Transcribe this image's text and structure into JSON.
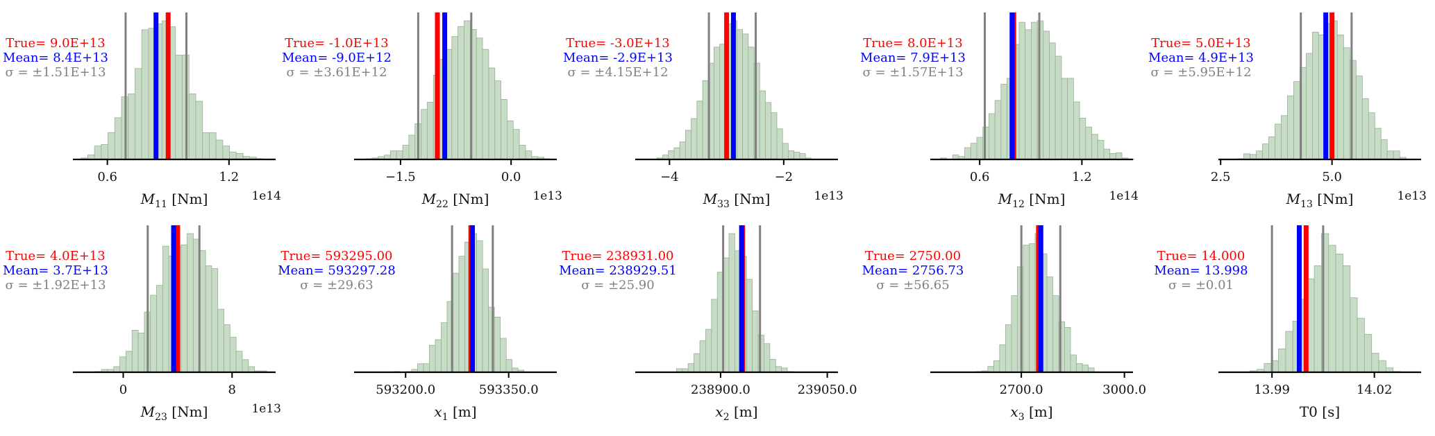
{
  "colors": {
    "true": "#ff0000",
    "mean": "#0000ff",
    "sigma": "#808080",
    "bar_fill": "#c6dcc4",
    "bar_edge": "#9aae98",
    "axis": "#000000"
  },
  "chart_data": [
    {
      "type": "bar",
      "subtype": "histogram",
      "xlabel_base": "M",
      "xlabel_sub": "11",
      "xlabel_unit": "[Nm]",
      "italic": true,
      "offset_text": "1e14",
      "xlim": [
        0.43,
        1.43
      ],
      "ticks": [
        0.6,
        1.2
      ],
      "tick_labels": [
        "0.6",
        "1.2"
      ],
      "true_value": 0.9,
      "mean_value": 0.84,
      "sigma_lines": [
        0.69,
        0.99
      ],
      "stat_text": {
        "true": "True= 9.0E+13",
        "mean": "Mean= 8.4E+13",
        "sigma": "σ = ±1.51E+13"
      },
      "bin_start": 0.47,
      "bin_width": 0.0333,
      "counts": [
        1,
        3,
        9,
        10,
        18,
        28,
        42,
        44,
        61,
        87,
        88,
        91,
        93,
        89,
        70,
        70,
        44,
        39,
        18,
        18,
        13,
        9,
        5,
        4,
        2,
        1.5,
        0.5,
        0.3
      ]
    },
    {
      "type": "bar",
      "subtype": "histogram",
      "xlabel_base": "M",
      "xlabel_sub": "22",
      "xlabel_unit": "[Nm]",
      "italic": true,
      "offset_text": "1e13",
      "xlim": [
        -2.13,
        0.62
      ],
      "ticks": [
        -1.5,
        0.0
      ],
      "tick_labels": [
        "−1.5",
        "0.0"
      ],
      "true_value": -1.0,
      "mean_value": -0.9,
      "sigma_lines": [
        -1.26,
        -0.54
      ],
      "stat_text": {
        "true": "True= -1.0E+13",
        "mean": "Mean= -9.0E+12",
        "sigma": "σ = ±3.61E+12"
      },
      "bin_start": -1.97,
      "bin_width": 0.0833,
      "counts": [
        0.5,
        1,
        2,
        3,
        6,
        6,
        10,
        17,
        25,
        35,
        40,
        59,
        70,
        77,
        86,
        93,
        97,
        91,
        85,
        77,
        64,
        55,
        42,
        27,
        21,
        10,
        6,
        2,
        1.5,
        0.5
      ]
    },
    {
      "type": "bar",
      "subtype": "histogram",
      "xlabel_base": "M",
      "xlabel_sub": "33",
      "xlabel_unit": "[Nm]",
      "italic": true,
      "offset_text": "1e13",
      "xlim": [
        -4.6,
        -1.05
      ],
      "ticks": [
        -4,
        -2
      ],
      "tick_labels": [
        "−4",
        "−2"
      ],
      "true_value": -3.0,
      "mean_value": -2.88,
      "sigma_lines": [
        -3.31,
        -2.49
      ],
      "stat_text": {
        "true": "True= -3.0E+13",
        "mean": "Mean= -2.9E+13",
        "sigma": "σ = ±4.15E+12"
      },
      "bin_start": -4.22,
      "bin_width": 0.1,
      "counts": [
        1,
        3,
        6,
        8,
        12,
        20,
        28,
        40,
        54,
        66,
        77,
        79,
        93,
        95,
        89,
        86,
        77,
        66,
        47,
        39,
        32,
        21,
        11,
        6,
        5,
        4,
        1,
        0.3
      ]
    },
    {
      "type": "bar",
      "subtype": "histogram",
      "xlabel_base": "M",
      "xlabel_sub": "12",
      "xlabel_unit": "[Nm]",
      "italic": true,
      "offset_text": "1e14",
      "xlim": [
        0.31,
        1.5
      ],
      "ticks": [
        0.6,
        1.2
      ],
      "tick_labels": [
        "0.6",
        "1.2"
      ],
      "true_value": 0.8,
      "mean_value": 0.79,
      "sigma_lines": [
        0.63,
        0.95
      ],
      "stat_text": {
        "true": "True= 8.0E+13",
        "mean": "Mean= 7.9E+13",
        "sigma": "σ = ±1.57E+13"
      },
      "bin_start": 0.37,
      "bin_width": 0.0355,
      "counts": [
        1,
        0.3,
        3,
        2,
        8,
        11,
        15,
        22,
        31,
        40,
        51,
        55,
        78,
        93,
        88,
        93,
        94,
        87,
        79,
        70,
        55,
        55,
        39,
        28,
        22,
        17,
        13,
        7,
        4,
        4.5,
        1,
        0.3
      ]
    },
    {
      "type": "bar",
      "subtype": "histogram",
      "xlabel_base": "M",
      "xlabel_sub": "13",
      "xlabel_unit": "[Nm]",
      "italic": true,
      "offset_text": "1e13",
      "xlim": [
        2.45,
        7.0
      ],
      "ticks": [
        2.5,
        5.0
      ],
      "tick_labels": [
        "2.5",
        "5.0"
      ],
      "true_value": 5.0,
      "mean_value": 4.86,
      "sigma_lines": [
        4.3,
        5.44
      ],
      "stat_text": {
        "true": "True= 5.0E+13",
        "mean": "Mean= 4.9E+13",
        "sigma": "σ = ±5.95E+12"
      },
      "bin_start": 2.6,
      "bin_width": 0.14,
      "counts": [
        0.3,
        0.3,
        0.5,
        4,
        3.5,
        6,
        11,
        16,
        25,
        31,
        45,
        55,
        65,
        75,
        90,
        88,
        96,
        98,
        88,
        79,
        70,
        59,
        43,
        33,
        22,
        14,
        6,
        6,
        1.5,
        0.3,
        0.2
      ]
    },
    {
      "type": "bar",
      "subtype": "histogram",
      "xlabel_base": "M",
      "xlabel_sub": "23",
      "xlabel_unit": "[Nm]",
      "italic": true,
      "offset_text": "1e13",
      "xlim": [
        -3.7,
        11.2
      ],
      "ticks": [
        0,
        8
      ],
      "tick_labels": [
        "0",
        "8"
      ],
      "true_value": 4.0,
      "mean_value": 3.7,
      "sigma_lines": [
        1.8,
        5.6
      ],
      "stat_text": {
        "true": "True= 4.0E+13",
        "mean": "Mean= 3.7E+13",
        "sigma": "σ = ±1.92E+13"
      },
      "bin_start": -2.05,
      "bin_width": 0.45,
      "counts": [
        0.5,
        2,
        2,
        4,
        11,
        15,
        30,
        28,
        43,
        55,
        62,
        90,
        83,
        90,
        91,
        99,
        95,
        87,
        76,
        74,
        45,
        34,
        25,
        15,
        9,
        4,
        1,
        1,
        0.3
      ]
    },
    {
      "type": "bar",
      "subtype": "histogram",
      "xlabel_base": "x",
      "xlabel_sub": "1",
      "xlabel_unit": "[m]",
      "italic": true,
      "offset_text": "",
      "xlim": [
        593125,
        593420
      ],
      "ticks": [
        593200,
        593350
      ],
      "tick_labels": [
        "593200.0",
        "593350.0"
      ],
      "true_value": 593295.0,
      "mean_value": 593297.28,
      "sigma_lines": [
        593267.6,
        593326.9
      ],
      "stat_text": {
        "true": "True= 593295.00",
        "mean": "Mean= 593297.28",
        "sigma": "σ = ±29.63"
      },
      "bin_start": 593183,
      "bin_width": 8.6,
      "counts": [
        0.5,
        0.2,
        0.5,
        2,
        6,
        6,
        19,
        23,
        35,
        50,
        70,
        82,
        92,
        98,
        93,
        73,
        46,
        39,
        24,
        9,
        3,
        1.5,
        0.3
      ]
    },
    {
      "type": "bar",
      "subtype": "histogram",
      "xlabel_base": "x",
      "xlabel_sub": "2",
      "xlabel_unit": "[m]",
      "italic": true,
      "offset_text": "",
      "xlim": [
        238780,
        239065
      ],
      "ticks": [
        238900,
        239050
      ],
      "tick_labels": [
        "238900.0",
        "239050.0"
      ],
      "true_value": 238931.0,
      "mean_value": 238929.51,
      "sigma_lines": [
        238903.6,
        238955.4
      ],
      "stat_text": {
        "true": "True= 238931.00",
        "mean": "Mean= 238929.51",
        "sigma": "σ = ±25.90"
      },
      "bin_start": 238838,
      "bin_width": 8.2,
      "counts": [
        2.5,
        2.5,
        6,
        13,
        22,
        30,
        51,
        70,
        80,
        97,
        85,
        81,
        65,
        43,
        26,
        20,
        9,
        4,
        3,
        0.5
      ]
    },
    {
      "type": "bar",
      "subtype": "histogram",
      "xlabel_base": "x",
      "xlabel_sub": "3",
      "xlabel_unit": "[m]",
      "italic": true,
      "offset_text": "",
      "xlim": [
        2435,
        3025
      ],
      "ticks": [
        2700,
        3000
      ],
      "tick_labels": [
        "2700.0",
        "3000.0"
      ],
      "true_value": 2750.0,
      "mean_value": 2756.73,
      "sigma_lines": [
        2700.1,
        2813.4
      ],
      "stat_text": {
        "true": "True= 2750.00",
        "mean": "Mean= 2756.73",
        "sigma": "σ = ±56.65"
      },
      "bin_start": 2568,
      "bin_width": 17.2,
      "counts": [
        0.5,
        1,
        4,
        8,
        19,
        33,
        53,
        73,
        88,
        89,
        96,
        82,
        66,
        53,
        35,
        31,
        12,
        6,
        5,
        3,
        0.3
      ]
    },
    {
      "type": "bar",
      "subtype": "histogram",
      "xlabel_base": "T0",
      "xlabel_sub": "",
      "xlabel_unit": "[s]",
      "italic": false,
      "offset_text": "",
      "xlim": [
        13.9743,
        14.0337
      ],
      "ticks": [
        13.99,
        14.02
      ],
      "tick_labels": [
        "13.99",
        "14.02"
      ],
      "true_value": 14.0,
      "mean_value": 13.998,
      "sigma_lines": [
        13.99,
        14.005
      ],
      "stat_text": {
        "true": "True= 14.000",
        "mean": "Mean= 13.998",
        "sigma": "σ = ±0.01"
      },
      "bin_start": 13.9835,
      "bin_width": 0.0021,
      "counts": [
        1,
        2,
        6,
        8,
        16,
        28,
        35,
        50,
        64,
        73,
        95,
        87,
        81,
        73,
        51,
        37,
        26,
        13,
        8,
        3,
        0.5
      ]
    }
  ]
}
